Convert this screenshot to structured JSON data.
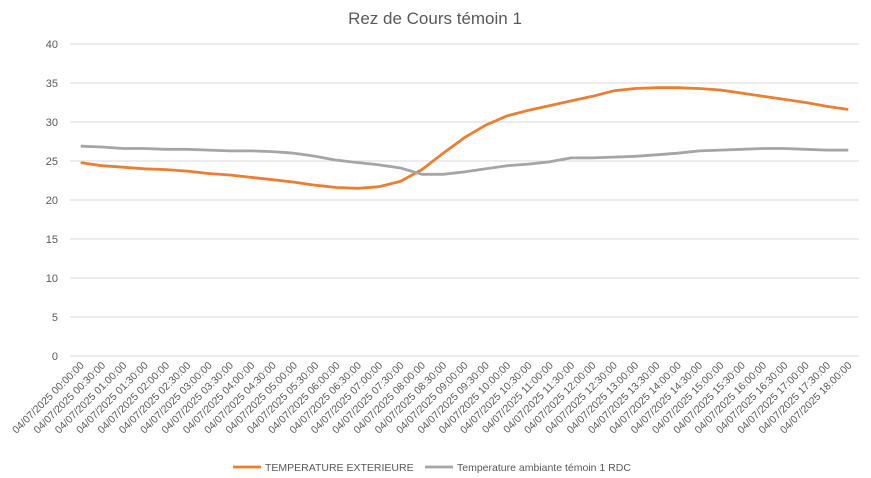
{
  "chart_data": {
    "type": "line",
    "title": "Rez de Cours témoin 1",
    "categories": [
      "04/07/2025 00:00:00",
      "04/07/2025 00:30:00",
      "04/07/2025 01:00:00",
      "04/07/2025 01:30:00",
      "04/07/2025 02:00:00",
      "04/07/2025 02:30:00",
      "04/07/2025 03:00:00",
      "04/07/2025 03:30:00",
      "04/07/2025 04:00:00",
      "04/07/2025 04:30:00",
      "04/07/2025 05:00:00",
      "04/07/2025 05:30:00",
      "04/07/2025 06:00:00",
      "04/07/2025 06:30:00",
      "04/07/2025 07:00:00",
      "04/07/2025 07:30:00",
      "04/07/2025 08:00:00",
      "04/07/2025 08:30:00",
      "04/07/2025 09:00:00",
      "04/07/2025 09:30:00",
      "04/07/2025 10:00:00",
      "04/07/2025 10:30:00",
      "04/07/2025 11:00:00",
      "04/07/2025 11:30:00",
      "04/07/2025 12:00:00",
      "04/07/2025 12:30:00",
      "04/07/2025 13:00:00",
      "04/07/2025 13:30:00",
      "04/07/2025 14:00:00",
      "04/07/2025 14:30:00",
      "04/07/2025 15:00:00",
      "04/07/2025 15:30:00",
      "04/07/2025 16:00:00",
      "04/07/2025 16:30:00",
      "04/07/2025 17:00:00",
      "04/07/2025 17:30:00",
      "04/07/2025 18:00:00"
    ],
    "series": [
      {
        "name": "TEMPERATURE EXTERIEURE",
        "color": "#ed7d31",
        "values": [
          24.8,
          24.4,
          24.2,
          24.0,
          23.9,
          23.7,
          23.4,
          23.2,
          22.9,
          22.6,
          22.3,
          21.9,
          21.6,
          21.5,
          21.7,
          22.4,
          23.9,
          26.0,
          28.0,
          29.6,
          30.8,
          31.5,
          32.1,
          32.7,
          33.3,
          34.0,
          34.3,
          34.4,
          34.4,
          34.3,
          34.1,
          33.7,
          33.3,
          32.9,
          32.5,
          32.0,
          31.6
        ]
      },
      {
        "name": "Temperature ambiante témoin 1 RDC",
        "color": "#a5a5a5",
        "values": [
          26.9,
          26.8,
          26.6,
          26.6,
          26.5,
          26.5,
          26.4,
          26.3,
          26.3,
          26.2,
          26.0,
          25.6,
          25.1,
          24.8,
          24.5,
          24.1,
          23.3,
          23.3,
          23.6,
          24.0,
          24.4,
          24.6,
          24.9,
          25.4,
          25.4,
          25.5,
          25.6,
          25.8,
          26.0,
          26.3,
          26.4,
          26.5,
          26.6,
          26.6,
          26.5,
          26.4,
          26.4
        ]
      }
    ],
    "ylim": [
      0,
      40
    ],
    "yticks": [
      0,
      5,
      10,
      15,
      20,
      25,
      30,
      35,
      40
    ],
    "grid": true,
    "legend": "bottom"
  }
}
